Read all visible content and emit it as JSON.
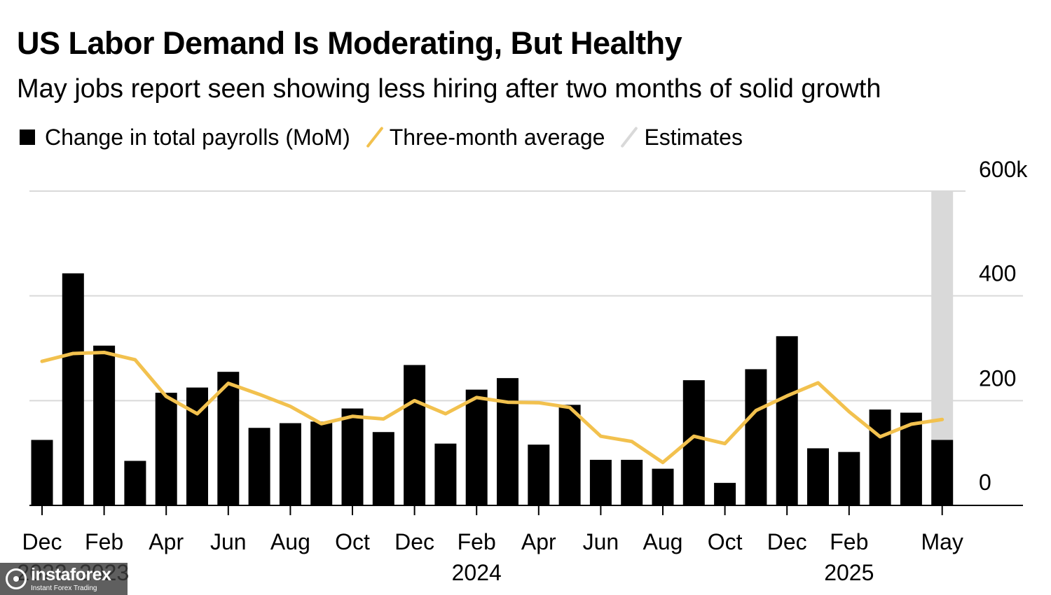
{
  "chart_data": {
    "type": "bar",
    "title": "US Labor Demand Is Moderating, But Healthy",
    "subtitle": "May jobs report seen showing less hiring after two months of solid growth",
    "legend": [
      {
        "name": "Change in total payrolls (MoM)",
        "color": "#000000",
        "shape": "box"
      },
      {
        "name": "Three-month average",
        "color": "#f2c14e",
        "shape": "line"
      },
      {
        "name": "Estimates",
        "color": "#d9d9d9",
        "shape": "band"
      }
    ],
    "legend_placement": "top-left",
    "grid": true,
    "y_axis": {
      "side": "right",
      "ylim": [
        0,
        600
      ],
      "ticks": [
        0,
        200,
        400,
        600
      ],
      "tick_labels": [
        "0",
        "200",
        "400",
        "600k"
      ]
    },
    "categories": [
      "Dec 2022",
      "Jan 2023",
      "Feb 2023",
      "Mar 2023",
      "Apr 2023",
      "May 2023",
      "Jun 2023",
      "Jul 2023",
      "Aug 2023",
      "Sep 2023",
      "Oct 2023",
      "Nov 2023",
      "Dec 2023",
      "Jan 2024",
      "Feb 2024",
      "Mar 2024",
      "Apr 2024",
      "May 2024",
      "Jun 2024",
      "Jul 2024",
      "Aug 2024",
      "Sep 2024",
      "Oct 2024",
      "Nov 2024",
      "Dec 2024",
      "Jan 2025",
      "Feb 2025",
      "Mar 2025",
      "Apr 2025",
      "May 2025"
    ],
    "x_tick_labels": [
      {
        "index": 0,
        "month": "Dec",
        "year": "2022"
      },
      {
        "index": 2,
        "month": "Feb",
        "year": "2023"
      },
      {
        "index": 4,
        "month": "Apr",
        "year": ""
      },
      {
        "index": 6,
        "month": "Jun",
        "year": ""
      },
      {
        "index": 8,
        "month": "Aug",
        "year": ""
      },
      {
        "index": 10,
        "month": "Oct",
        "year": ""
      },
      {
        "index": 12,
        "month": "Dec",
        "year": ""
      },
      {
        "index": 14,
        "month": "Feb",
        "year": "2024"
      },
      {
        "index": 16,
        "month": "Apr",
        "year": ""
      },
      {
        "index": 18,
        "month": "Jun",
        "year": ""
      },
      {
        "index": 20,
        "month": "Aug",
        "year": ""
      },
      {
        "index": 22,
        "month": "Oct",
        "year": ""
      },
      {
        "index": 24,
        "month": "Dec",
        "year": ""
      },
      {
        "index": 26,
        "month": "Feb",
        "year": "2025"
      },
      {
        "index": 29,
        "month": "May",
        "year": ""
      }
    ],
    "series": [
      {
        "name": "Change in total payrolls (MoM)",
        "type": "bar",
        "values": [
          125,
          443,
          305,
          85,
          215,
          225,
          255,
          148,
          157,
          160,
          185,
          140,
          268,
          118,
          221,
          243,
          116,
          192,
          87,
          87,
          70,
          239,
          43,
          260,
          323,
          109,
          102,
          183,
          177,
          125
        ]
      },
      {
        "name": "Three-month average",
        "type": "line",
        "values": [
          275,
          290,
          292,
          278,
          208,
          175,
          233,
          212,
          189,
          156,
          170,
          165,
          200,
          175,
          206,
          197,
          196,
          187,
          132,
          122,
          82,
          132,
          118,
          181,
          209,
          234,
          179,
          131,
          155,
          164
        ]
      }
    ],
    "estimate_index": 29,
    "colors": {
      "bar": "#000000",
      "line": "#f2c14e",
      "estimate": "#d9d9d9",
      "grid": "#d9d9d9",
      "axis": "#000000"
    }
  },
  "watermark": {
    "brand": "instaforex",
    "tagline": "Instant Forex Trading"
  }
}
